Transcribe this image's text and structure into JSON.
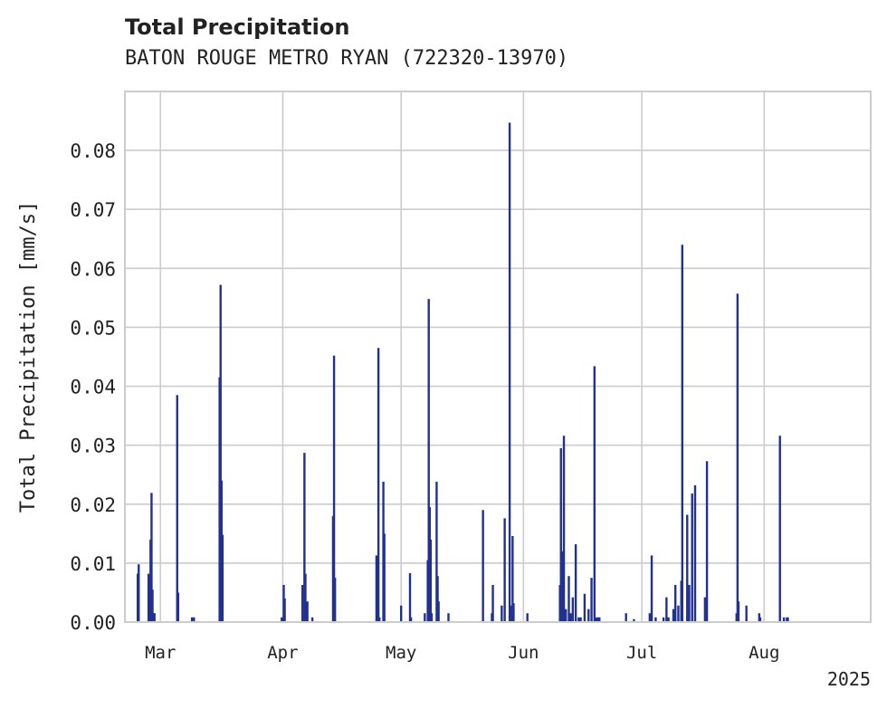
{
  "chart_data": {
    "type": "bar",
    "title": "Total Precipitation",
    "subtitle": "BATON ROUGE METRO RYAN (722320-13970)",
    "ylabel": "Total Precipitation [mm/s]",
    "xlabel": "",
    "year_label": "2025",
    "x_range": [
      "2025-02-20",
      "2025-08-28"
    ],
    "ylim": [
      0,
      0.09
    ],
    "grid": true,
    "bar_color": "#22318f",
    "x_ticks": [
      {
        "date": "2025-03-01",
        "label": "Mar"
      },
      {
        "date": "2025-04-01",
        "label": "Apr"
      },
      {
        "date": "2025-05-01",
        "label": "May"
      },
      {
        "date": "2025-06-01",
        "label": "Jun"
      },
      {
        "date": "2025-07-01",
        "label": "Jul"
      },
      {
        "date": "2025-08-01",
        "label": "Aug"
      }
    ],
    "y_ticks": [
      {
        "value": 0.0,
        "label": "0.00"
      },
      {
        "value": 0.01,
        "label": "0.01"
      },
      {
        "value": 0.02,
        "label": "0.02"
      },
      {
        "value": 0.03,
        "label": "0.03"
      },
      {
        "value": 0.04,
        "label": "0.04"
      },
      {
        "value": 0.05,
        "label": "0.05"
      },
      {
        "value": 0.06,
        "label": "0.06"
      },
      {
        "value": 0.07,
        "label": "0.07"
      },
      {
        "value": 0.08,
        "label": "0.08"
      }
    ],
    "x": [
      "2025-02-23T06:00",
      "2025-02-23T12:00",
      "2025-02-26T00:00",
      "2025-02-26T06:00",
      "2025-02-26T12:00",
      "2025-02-26T18:00",
      "2025-02-27T00:00",
      "2025-02-27T06:00",
      "2025-02-27T12:00",
      "2025-03-05T06:00",
      "2025-03-05T12:00",
      "2025-03-09T00:00",
      "2025-03-09T12:00",
      "2025-03-16T00:00",
      "2025-03-16T06:00",
      "2025-03-16T12:00",
      "2025-03-16T18:00",
      "2025-03-31T18:00",
      "2025-04-01T06:00",
      "2025-04-01T12:00",
      "2025-04-06T00:00",
      "2025-04-06T12:00",
      "2025-04-06T18:00",
      "2025-04-07T00:00",
      "2025-04-07T06:00",
      "2025-04-08T12:00",
      "2025-04-13T18:00",
      "2025-04-14T00:00",
      "2025-04-14T06:00",
      "2025-04-24T18:00",
      "2025-04-25T06:00",
      "2025-04-25T12:00",
      "2025-04-26T12:00",
      "2025-04-26T18:00",
      "2025-05-01T00:00",
      "2025-05-03T06:00",
      "2025-05-03T12:00",
      "2025-05-07T00:00",
      "2025-05-07T18:00",
      "2025-05-08T00:00",
      "2025-05-08T06:00",
      "2025-05-08T12:00",
      "2025-05-08T18:00",
      "2025-05-10T00:00",
      "2025-05-10T06:00",
      "2025-05-10T12:00",
      "2025-05-13T00:00",
      "2025-05-21T18:00",
      "2025-05-24T00:00",
      "2025-05-24T06:00",
      "2025-05-26T12:00",
      "2025-05-27T06:00",
      "2025-05-28T12:00",
      "2025-05-28T18:00",
      "2025-05-29T06:00",
      "2025-05-29T12:00",
      "2025-06-02T00:00",
      "2025-06-10T06:00",
      "2025-06-10T12:00",
      "2025-06-11T00:00",
      "2025-06-11T06:00",
      "2025-06-11T18:00",
      "2025-06-12T12:00",
      "2025-06-13T00:00",
      "2025-06-13T12:00",
      "2025-06-14T06:00",
      "2025-06-15T00:00",
      "2025-06-15T12:00",
      "2025-06-16T12:00",
      "2025-06-17T12:00",
      "2025-06-18T06:00",
      "2025-06-19T00:00",
      "2025-06-19T12:00",
      "2025-06-20T00:00",
      "2025-06-20T06:00",
      "2025-06-27T00:00",
      "2025-06-29T00:00",
      "2025-07-03T00:00",
      "2025-07-03T12:00",
      "2025-07-04T12:00",
      "2025-07-06T12:00",
      "2025-07-07T06:00",
      "2025-07-07T18:00",
      "2025-07-09T00:00",
      "2025-07-09T12:00",
      "2025-07-10T06:00",
      "2025-07-11T00:00",
      "2025-07-11T06:00",
      "2025-07-12T12:00",
      "2025-07-13T00:00",
      "2025-07-13T18:00",
      "2025-07-14T12:00",
      "2025-07-17T00:00",
      "2025-07-17T12:00",
      "2025-07-25T00:00",
      "2025-07-25T06:00",
      "2025-07-25T12:00",
      "2025-07-27T12:00",
      "2025-07-30T18:00",
      "2025-07-31T00:00",
      "2025-08-05T00:00",
      "2025-08-06T00:00",
      "2025-08-06T18:00",
      "2025-08-07T00:00"
    ],
    "values": [
      0.0082,
      0.0098,
      0.0082,
      0.005,
      0.014,
      0.0219,
      0.0055,
      0.0015,
      0.0015,
      0.0385,
      0.005,
      0.0008,
      0.0008,
      0.0415,
      0.0572,
      0.024,
      0.0148,
      0.0008,
      0.0063,
      0.004,
      0.0063,
      0.0287,
      0.0082,
      0.0015,
      0.0035,
      0.0008,
      0.018,
      0.0452,
      0.0075,
      0.0113,
      0.0465,
      0.0008,
      0.0238,
      0.015,
      0.0028,
      0.0083,
      0.0008,
      0.0015,
      0.0105,
      0.0548,
      0.0195,
      0.014,
      0.0015,
      0.0238,
      0.0078,
      0.0035,
      0.0015,
      0.019,
      0.0015,
      0.0063,
      0.0028,
      0.0176,
      0.0847,
      0.0028,
      0.0146,
      0.0032,
      0.0015,
      0.0063,
      0.0295,
      0.012,
      0.0316,
      0.0022,
      0.0078,
      0.0015,
      0.0042,
      0.0132,
      0.0008,
      0.0008,
      0.0048,
      0.0022,
      0.0075,
      0.0434,
      0.0008,
      0.0008,
      0.0008,
      0.0015,
      0.0005,
      0.0015,
      0.0113,
      0.0008,
      0.0008,
      0.0042,
      0.0008,
      0.0022,
      0.0063,
      0.0028,
      0.007,
      0.064,
      0.0182,
      0.0063,
      0.0218,
      0.0232,
      0.0042,
      0.0273,
      0.0015,
      0.0557,
      0.0035,
      0.0028,
      0.0015,
      0.0008,
      0.0316,
      0.0008,
      0.0008,
      0.0008
    ]
  }
}
